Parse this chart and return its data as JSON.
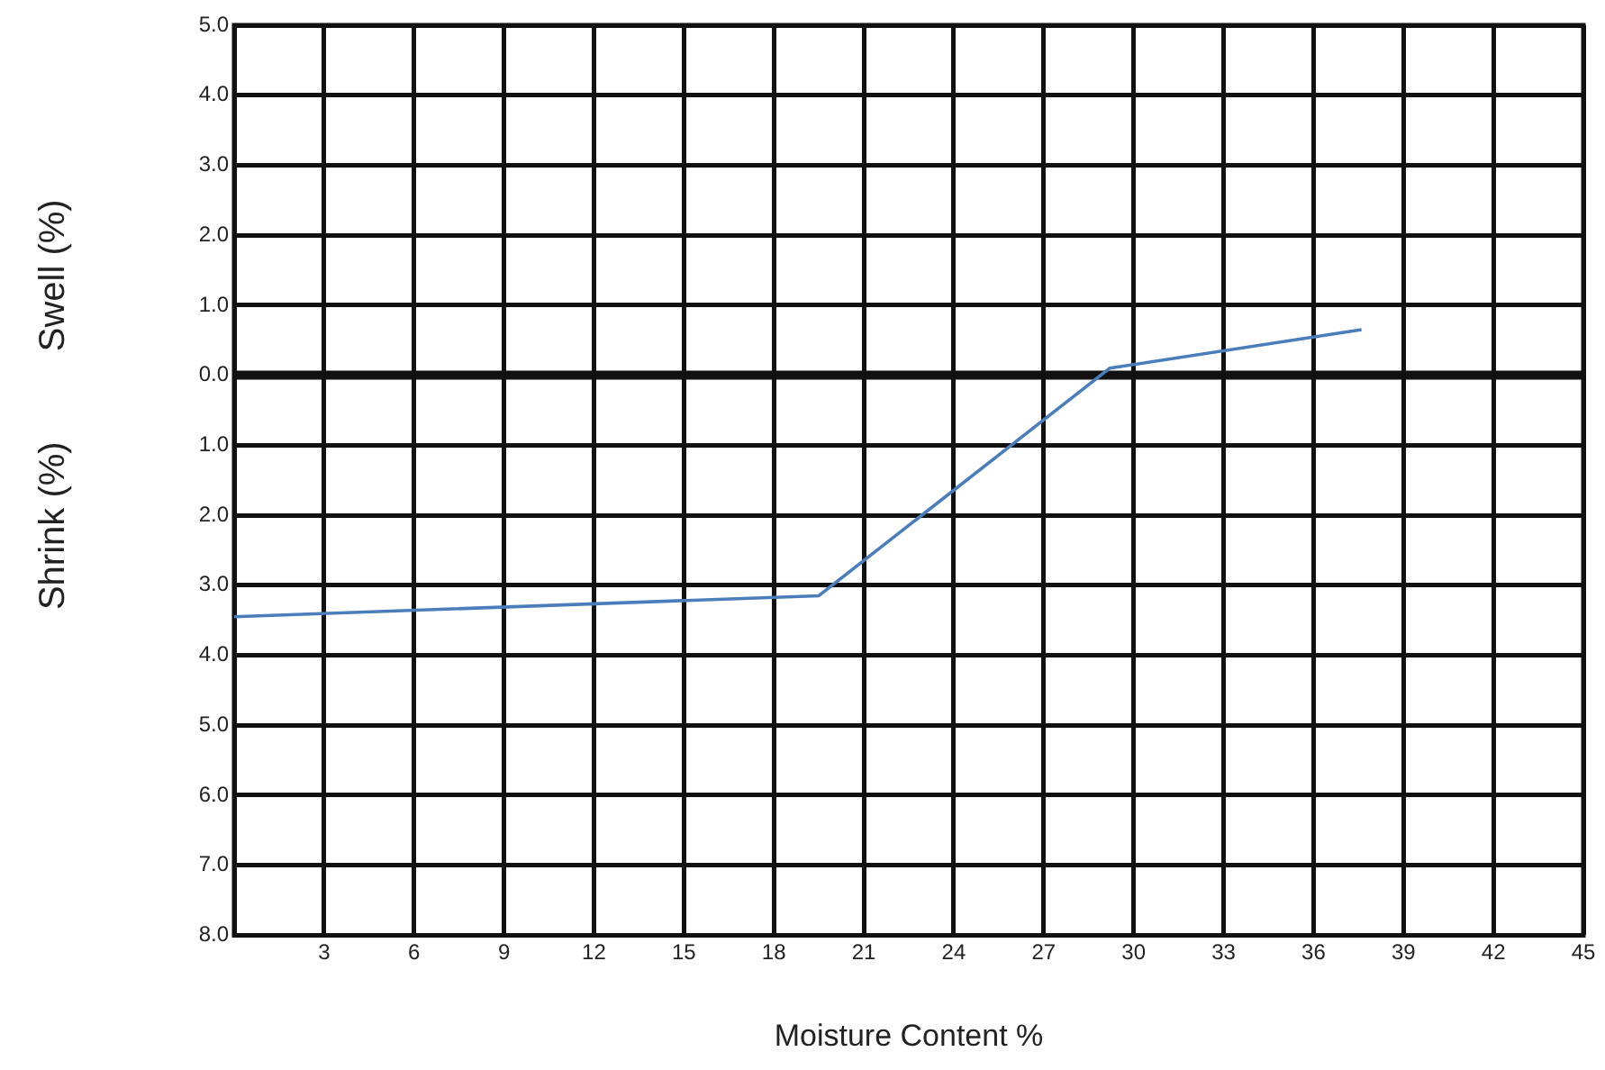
{
  "chart_data": {
    "type": "line",
    "xlabel": "Moisture Content %",
    "ylabel": "Swell (%)",
    "annotations": [
      "Shrink (%)"
    ],
    "x": [
      0,
      19.5,
      29.2,
      37.6
    ],
    "series": [
      {
        "color": "#4a7ebb",
        "values": [
          -3.45,
          -3.15,
          0.1,
          0.65
        ]
      }
    ],
    "xlim": [
      0,
      45
    ],
    "xticks": [
      {
        "value": 0,
        "label": null
      },
      3,
      6,
      9,
      12,
      15,
      18,
      21,
      24,
      27,
      30,
      33,
      36,
      39,
      42,
      45
    ],
    "ylim": [
      -8,
      5
    ],
    "yticks": [
      {
        "value": 5,
        "label": "5.0"
      },
      {
        "value": 4,
        "label": "4.0"
      },
      {
        "value": 3,
        "label": "3.0"
      },
      {
        "value": 2,
        "label": "2.0"
      },
      {
        "value": 1,
        "label": "1.0"
      },
      {
        "value": 0,
        "label": "0.0"
      },
      {
        "value": -1,
        "label": "1.0"
      },
      {
        "value": -2,
        "label": "2.0"
      },
      {
        "value": -3,
        "label": "3.0"
      },
      {
        "value": -4,
        "label": "4.0"
      },
      {
        "value": -5,
        "label": "5.0"
      },
      {
        "value": -6,
        "label": "6.0"
      },
      {
        "value": -7,
        "label": "7.0"
      },
      {
        "value": -8,
        "label": "8.0"
      }
    ],
    "ref_lines": [
      {
        "axis": "y",
        "value": 0,
        "color": "#111111"
      }
    ],
    "grid": true,
    "marker": "none",
    "line_style": "solid",
    "legend": false
  }
}
